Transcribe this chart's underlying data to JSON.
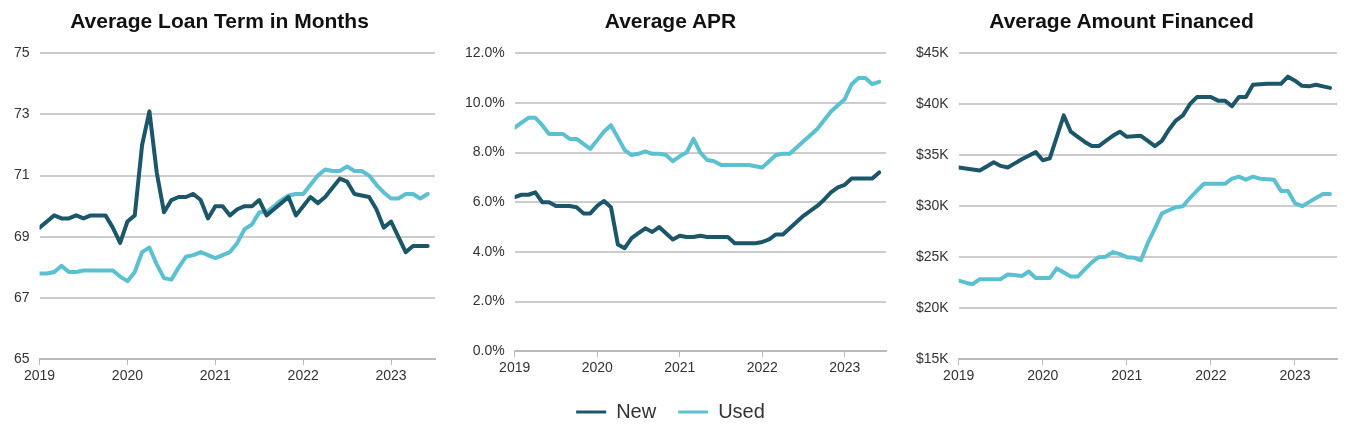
{
  "chart_data": [
    {
      "type": "line",
      "title": "Average Loan Term in Months",
      "grid": "y",
      "legend": false,
      "marker": "none",
      "line_style": "solid",
      "x": [
        "2019-01",
        "2019-02",
        "2019-03",
        "2019-04",
        "2019-05",
        "2019-06",
        "2019-07",
        "2019-08",
        "2019-09",
        "2019-10",
        "2019-11",
        "2019-12",
        "2020-01",
        "2020-02",
        "2020-03",
        "2020-04",
        "2020-05",
        "2020-06",
        "2020-07",
        "2020-08",
        "2020-09",
        "2020-10",
        "2020-11",
        "2020-12",
        "2021-01",
        "2021-02",
        "2021-03",
        "2021-04",
        "2021-05",
        "2021-06",
        "2021-07",
        "2021-08",
        "2021-09",
        "2021-10",
        "2021-11",
        "2021-12",
        "2022-01",
        "2022-02",
        "2022-03",
        "2022-04",
        "2022-05",
        "2022-06",
        "2022-07",
        "2022-08",
        "2022-09",
        "2022-10",
        "2022-11",
        "2022-12",
        "2023-01",
        "2023-02",
        "2023-03",
        "2023-04",
        "2023-05",
        "2023-06"
      ],
      "xlim": [
        "2019-01",
        "2023-07"
      ],
      "xticks": [
        "2019",
        "2020",
        "2021",
        "2022",
        "2023"
      ],
      "ylim": [
        65,
        75
      ],
      "yticks": [
        65,
        67,
        69,
        71,
        73,
        75
      ],
      "series": [
        {
          "color": "#1b5768",
          "values": [
            69.3,
            69.5,
            69.7,
            69.6,
            69.6,
            69.7,
            69.6,
            69.7,
            69.7,
            69.7,
            69.3,
            68.8,
            69.5,
            69.7,
            72.0,
            73.1,
            71.1,
            69.8,
            70.2,
            70.3,
            70.3,
            70.4,
            70.2,
            69.6,
            70.0,
            70.0,
            69.7,
            69.9,
            70.0,
            70.0,
            70.2,
            69.7,
            69.9,
            70.1,
            70.3,
            69.7,
            70.0,
            70.3,
            70.1,
            70.3,
            70.6,
            70.9,
            70.8,
            70.4,
            70.35,
            70.3,
            69.9,
            69.3,
            69.5,
            69.0,
            68.5,
            68.7,
            68.7,
            68.7
          ]
        },
        {
          "color": "#5bc0d0",
          "values": [
            67.8,
            67.8,
            67.85,
            68.05,
            67.85,
            67.85,
            67.9,
            67.9,
            67.9,
            67.9,
            67.9,
            67.7,
            67.55,
            67.85,
            68.5,
            68.65,
            68.1,
            67.65,
            67.6,
            68.0,
            68.35,
            68.4,
            68.5,
            68.4,
            68.3,
            68.4,
            68.5,
            68.8,
            69.25,
            69.4,
            69.8,
            69.8,
            70.0,
            70.2,
            70.35,
            70.4,
            70.4,
            70.7,
            71.0,
            71.2,
            71.15,
            71.15,
            71.3,
            71.15,
            71.15,
            71.0,
            70.7,
            70.45,
            70.25,
            70.25,
            70.4,
            70.4,
            70.25,
            70.4
          ]
        }
      ]
    },
    {
      "type": "line",
      "title": "Average APR",
      "grid": "y",
      "legend": "bottom",
      "marker": "none",
      "line_style": "solid",
      "x": [
        "2019-01",
        "2019-02",
        "2019-03",
        "2019-04",
        "2019-05",
        "2019-06",
        "2019-07",
        "2019-08",
        "2019-09",
        "2019-10",
        "2019-11",
        "2019-12",
        "2020-01",
        "2020-02",
        "2020-03",
        "2020-04",
        "2020-05",
        "2020-06",
        "2020-07",
        "2020-08",
        "2020-09",
        "2020-10",
        "2020-11",
        "2020-12",
        "2021-01",
        "2021-02",
        "2021-03",
        "2021-04",
        "2021-05",
        "2021-06",
        "2021-07",
        "2021-08",
        "2021-09",
        "2021-10",
        "2021-11",
        "2021-12",
        "2022-01",
        "2022-02",
        "2022-03",
        "2022-04",
        "2022-05",
        "2022-06",
        "2022-07",
        "2022-08",
        "2022-09",
        "2022-10",
        "2022-11",
        "2022-12",
        "2023-01",
        "2023-02",
        "2023-03",
        "2023-04",
        "2023-05",
        "2023-06"
      ],
      "xlim": [
        "2019-01",
        "2023-07"
      ],
      "xticks": [
        "2019",
        "2020",
        "2021",
        "2022",
        "2023"
      ],
      "ylim": [
        0,
        12
      ],
      "yticks": [
        {
          "value": 0,
          "label": "0.0%"
        },
        {
          "value": 2,
          "label": "2.0%"
        },
        {
          "value": 4,
          "label": "4.0%"
        },
        {
          "value": 6,
          "label": "6.0%"
        },
        {
          "value": 8,
          "label": "8.0%"
        },
        {
          "value": 10,
          "label": "10.0%"
        },
        {
          "value": 12,
          "label": "12.0%"
        }
      ],
      "series": [
        {
          "name": "New",
          "color": "#1b5768",
          "values": [
            6.2,
            6.3,
            6.3,
            6.4,
            6.0,
            6.0,
            5.85,
            5.85,
            5.85,
            5.8,
            5.55,
            5.55,
            5.85,
            6.05,
            5.8,
            4.3,
            4.15,
            4.55,
            4.75,
            4.95,
            4.8,
            5.0,
            4.75,
            4.5,
            4.65,
            4.6,
            4.6,
            4.65,
            4.6,
            4.6,
            4.6,
            4.6,
            4.35,
            4.35,
            4.35,
            4.35,
            4.4,
            4.5,
            4.7,
            4.7,
            4.95,
            5.2,
            5.45,
            5.65,
            5.85,
            6.1,
            6.4,
            6.6,
            6.7,
            6.95,
            6.95,
            6.95,
            6.95,
            7.2
          ]
        },
        {
          "name": "Used",
          "color": "#5bc0d0",
          "values": [
            9.0,
            9.2,
            9.4,
            9.4,
            9.1,
            8.75,
            8.75,
            8.75,
            8.55,
            8.55,
            8.35,
            8.15,
            8.5,
            8.85,
            9.1,
            8.6,
            8.1,
            7.9,
            7.95,
            8.05,
            7.95,
            7.95,
            7.9,
            7.65,
            7.85,
            8.0,
            8.55,
            8.0,
            7.7,
            7.65,
            7.5,
            7.5,
            7.5,
            7.5,
            7.5,
            7.45,
            7.4,
            7.65,
            7.9,
            7.95,
            7.95,
            8.2,
            8.45,
            8.7,
            8.95,
            9.3,
            9.65,
            9.9,
            10.15,
            10.75,
            11.0,
            11.0,
            10.75,
            10.85
          ]
        }
      ]
    },
    {
      "type": "line",
      "title": "Average Amount Financed",
      "grid": "y",
      "legend": false,
      "marker": "none",
      "line_style": "solid",
      "x": [
        "2019-01",
        "2019-02",
        "2019-03",
        "2019-04",
        "2019-05",
        "2019-06",
        "2019-07",
        "2019-08",
        "2019-09",
        "2019-10",
        "2019-11",
        "2019-12",
        "2020-01",
        "2020-02",
        "2020-03",
        "2020-04",
        "2020-05",
        "2020-06",
        "2020-07",
        "2020-08",
        "2020-09",
        "2020-10",
        "2020-11",
        "2020-12",
        "2021-01",
        "2021-02",
        "2021-03",
        "2021-04",
        "2021-05",
        "2021-06",
        "2021-07",
        "2021-08",
        "2021-09",
        "2021-10",
        "2021-11",
        "2021-12",
        "2022-01",
        "2022-02",
        "2022-03",
        "2022-04",
        "2022-05",
        "2022-06",
        "2022-07",
        "2022-08",
        "2022-09",
        "2022-10",
        "2022-11",
        "2022-12",
        "2023-01",
        "2023-02",
        "2023-03",
        "2023-04",
        "2023-05",
        "2023-06"
      ],
      "xlim": [
        "2019-01",
        "2023-07"
      ],
      "xticks": [
        "2019",
        "2020",
        "2021",
        "2022",
        "2023"
      ],
      "ylim": [
        15,
        45
      ],
      "yticks": [
        {
          "value": 15,
          "label": "$15K"
        },
        {
          "value": 20,
          "label": "$20K"
        },
        {
          "value": 25,
          "label": "$25K"
        },
        {
          "value": 30,
          "label": "$30K"
        },
        {
          "value": 35,
          "label": "$35K"
        },
        {
          "value": 40,
          "label": "$40K"
        },
        {
          "value": 45,
          "label": "$45K"
        }
      ],
      "series": [
        {
          "color": "#1b5768",
          "values": [
            33.8,
            33.7,
            33.6,
            33.5,
            33.9,
            34.3,
            33.95,
            33.8,
            34.2,
            34.6,
            34.95,
            35.3,
            34.5,
            34.7,
            36.8,
            38.9,
            37.3,
            36.8,
            36.3,
            35.9,
            35.9,
            36.4,
            36.9,
            37.3,
            36.8,
            36.85,
            36.9,
            36.4,
            35.9,
            36.4,
            37.5,
            38.4,
            38.9,
            40.0,
            40.7,
            40.7,
            40.7,
            40.35,
            40.35,
            39.8,
            40.7,
            40.7,
            41.9,
            41.95,
            42.0,
            42.0,
            42.0,
            42.7,
            42.3,
            41.8,
            41.75,
            41.9,
            41.75,
            41.6
          ]
        },
        {
          "color": "#5bc0d0",
          "values": [
            22.7,
            22.5,
            22.35,
            22.85,
            22.85,
            22.85,
            22.85,
            23.3,
            23.25,
            23.15,
            23.6,
            22.95,
            22.95,
            22.95,
            23.9,
            23.5,
            23.1,
            23.1,
            23.8,
            24.5,
            25.0,
            25.05,
            25.5,
            25.3,
            25.0,
            24.95,
            24.7,
            26.4,
            27.8,
            29.3,
            29.6,
            29.9,
            30.0,
            30.8,
            31.5,
            32.2,
            32.2,
            32.2,
            32.2,
            32.7,
            32.9,
            32.6,
            32.9,
            32.7,
            32.65,
            32.6,
            31.5,
            31.5,
            30.3,
            30.0,
            30.4,
            30.8,
            31.2,
            31.2
          ]
        }
      ]
    }
  ]
}
